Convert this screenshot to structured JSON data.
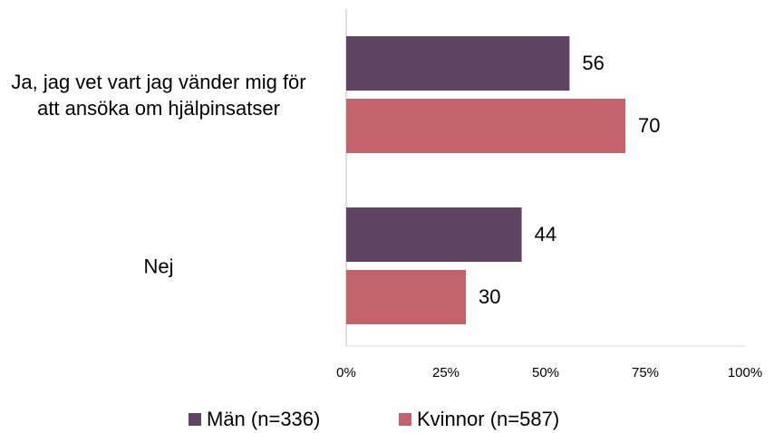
{
  "chart_data": {
    "type": "barh",
    "categories": [
      "Ja, jag vet vart jag vänder mig för att ansöka om hjälpinsatser",
      "Nej"
    ],
    "series": [
      {
        "name": "Män (n=336)",
        "color": "#604562",
        "values": [
          56,
          44
        ]
      },
      {
        "name": "Kvinnor (n=587)",
        "color": "#c4636c",
        "values": [
          70,
          30
        ]
      }
    ],
    "xlim": [
      0,
      100
    ],
    "xticks": [
      {
        "value": 0,
        "label": "0%"
      },
      {
        "value": 25,
        "label": "25%"
      },
      {
        "value": 50,
        "label": "50%"
      },
      {
        "value": 75,
        "label": "75%"
      },
      {
        "value": 100,
        "label": "100%"
      }
    ],
    "grid": false,
    "legend": "bottom"
  }
}
